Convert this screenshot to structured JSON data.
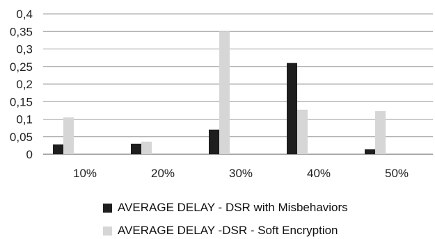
{
  "chart_data": {
    "type": "bar",
    "categories": [
      "10%",
      "20%",
      "30%",
      "40%",
      "50%"
    ],
    "series": [
      {
        "name": "AVERAGE DELAY - DSR with Misbehaviors",
        "color": "#1e1e1e",
        "values": [
          0.028,
          0.03,
          0.07,
          0.26,
          0.014
        ]
      },
      {
        "name": "AVERAGE DELAY -DSR - Soft Encryption",
        "color": "#d6d6d6",
        "values": [
          0.105,
          0.036,
          0.35,
          0.127,
          0.123
        ]
      }
    ],
    "y_ticks": [
      "0",
      "0,05",
      "0,1",
      "0,15",
      "0,2",
      "0,25",
      "0,3",
      "0,35",
      "0,4"
    ],
    "ylim": [
      0,
      0.4
    ],
    "grid": true,
    "legend_position": "bottom",
    "title": "",
    "xlabel": "",
    "ylabel": ""
  }
}
